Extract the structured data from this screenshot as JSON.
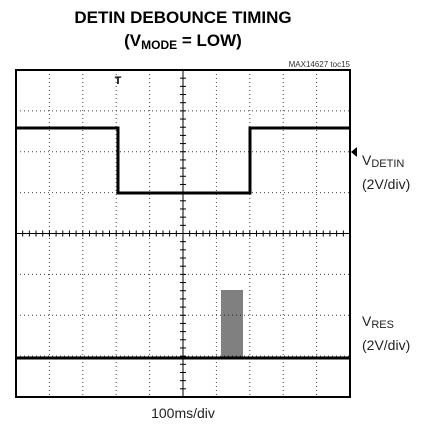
{
  "header": {
    "title": "DETIN DEBOUNCE TIMING",
    "subtitle": [
      "(V",
      "MODE",
      " = LOW)"
    ],
    "figure_id": "MAX14627 toc15"
  },
  "channels": [
    {
      "label": [
        "V",
        "DETIN"
      ],
      "scale": "(2V/div)"
    },
    {
      "label": [
        "V",
        "RES"
      ],
      "scale": "(2V/div)"
    }
  ],
  "timebase": "100ms/div"
}
